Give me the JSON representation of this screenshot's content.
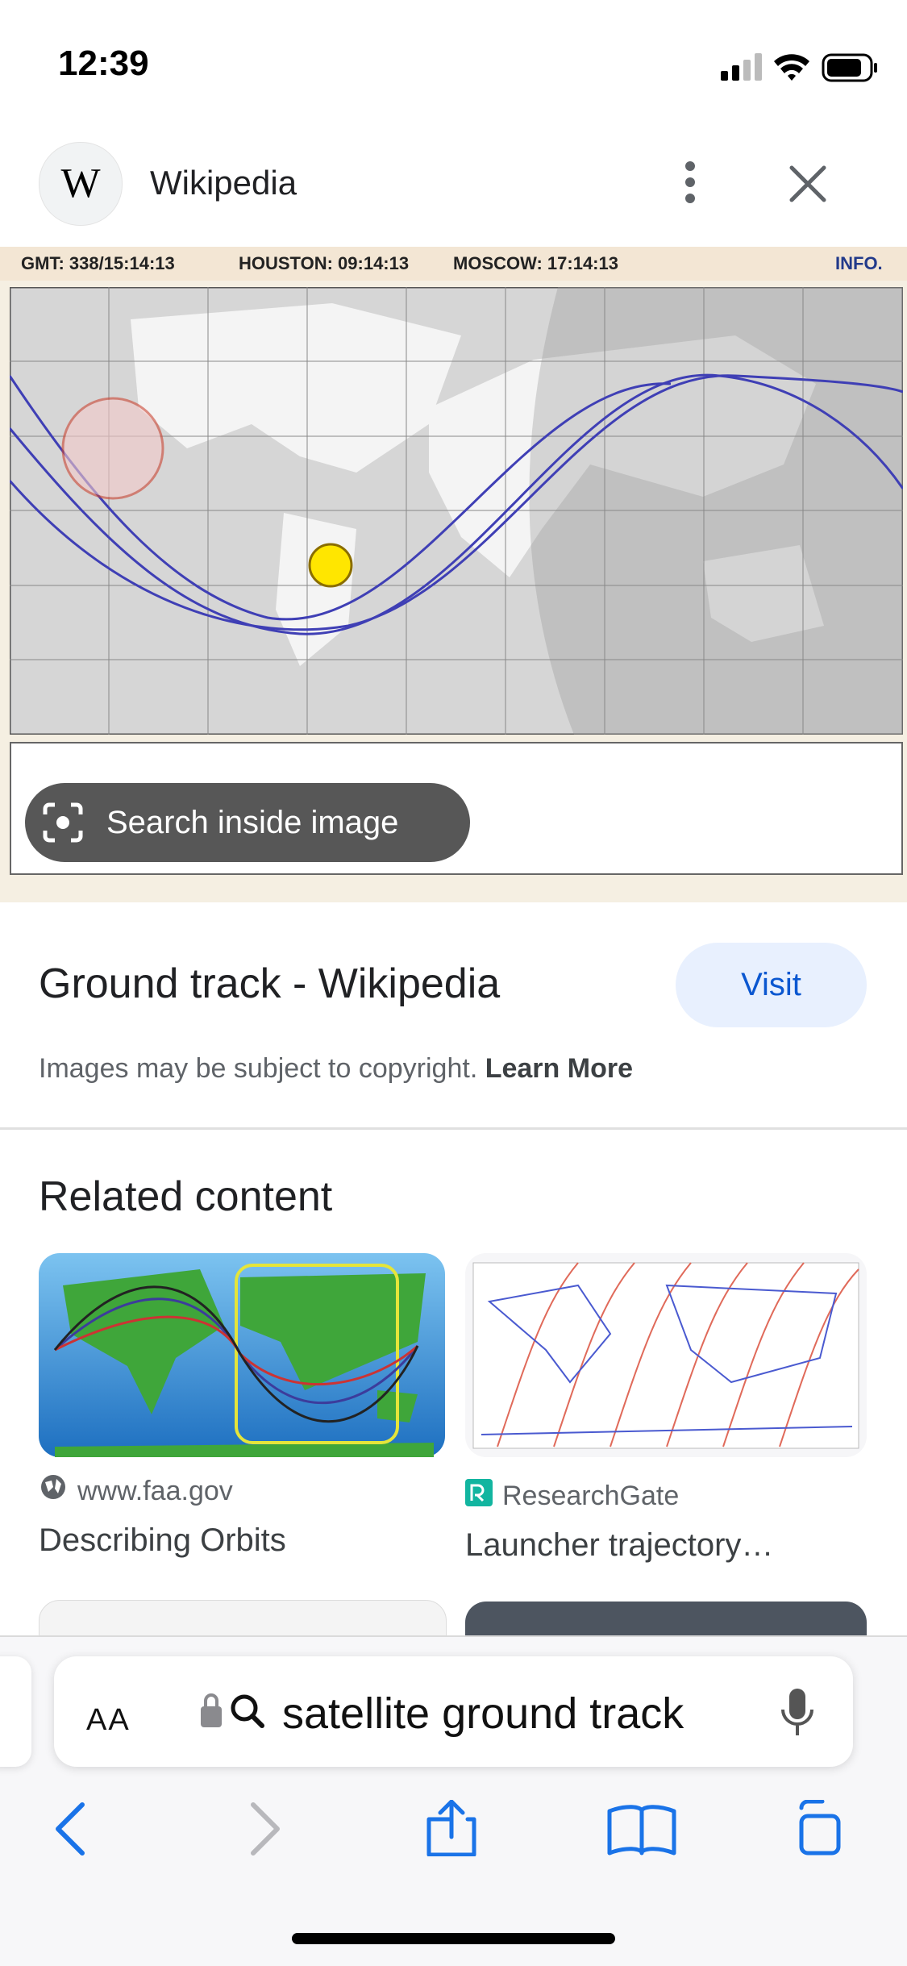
{
  "status_bar": {
    "time": "12:39"
  },
  "header": {
    "logo": "W",
    "title": "Wikipedia"
  },
  "image": {
    "header_texts": [
      "GMT: 338/15:14:13",
      "HOUSTON: 09:14:13",
      "MOSCOW: 17:14:13",
      "INFO."
    ],
    "overlay_button": "Search inside image"
  },
  "result": {
    "title": "Ground track - Wikipedia",
    "visit_button": "Visit",
    "notice": "Images may be subject to copyright.",
    "learn_more": "Learn More"
  },
  "related": {
    "heading": "Related content",
    "items": [
      {
        "source": "www.faa.gov",
        "title": "Describing Orbits"
      },
      {
        "source": "ResearchGate",
        "title": "Launcher trajectory…"
      }
    ]
  },
  "toolbar": {
    "text_size": "AA",
    "search_query": "satellite ground track"
  }
}
